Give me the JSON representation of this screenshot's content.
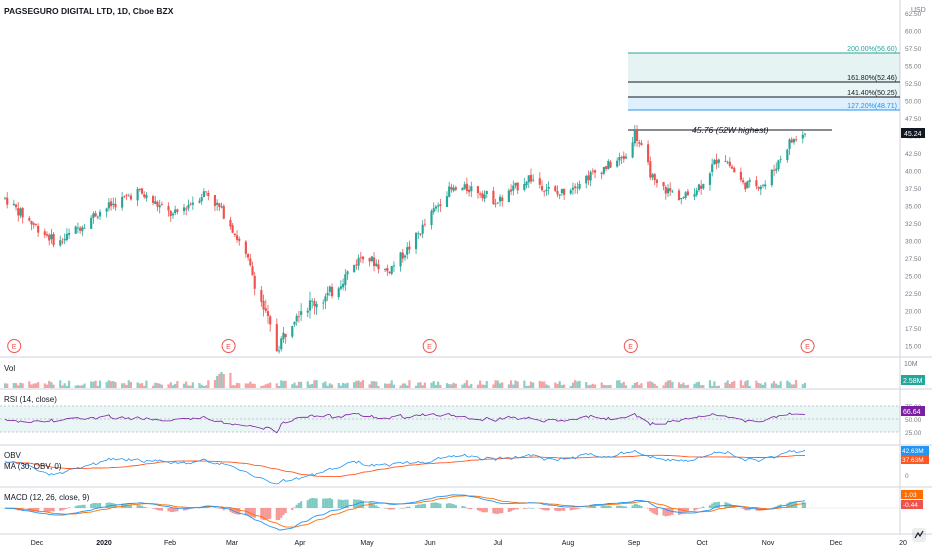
{
  "header": {
    "title": "PAGSEGURO DIGITAL LTD, 1D, Cboe BZX",
    "currency": "USD"
  },
  "colors": {
    "up": "#26a69a",
    "down": "#ef5350",
    "rsi": "#7b1fa2",
    "obv": "#2196f3",
    "ma": "#ff5722",
    "macd": "#2196f3",
    "signal": "#ff6d00",
    "fib200": "#26a69a",
    "fib127": "#2196f3"
  },
  "price_axis": {
    "ticks": [
      "62.50",
      "60.00",
      "57.50",
      "55.00",
      "52.50",
      "50.00",
      "47.50",
      "45.00",
      "42.50",
      "40.00",
      "37.50",
      "35.00",
      "32.50",
      "30.00",
      "27.50",
      "25.00",
      "22.50",
      "20.00",
      "17.50",
      "15.00"
    ],
    "current": "45.24"
  },
  "fib": {
    "l200": "200.00%(56.60)",
    "l161": "161.80%(52.46)",
    "l141": "141.40%(50.25)",
    "l127": "127.20%(48.71)"
  },
  "high_label": "45.76 (52W highest)",
  "earnings_marker": "E",
  "vol": {
    "label": "Vol",
    "axis_top": "10M",
    "current": "2.58M"
  },
  "rsi": {
    "label": "RSI (14, close)",
    "ticks": [
      "75.00",
      "50.00",
      "25.00"
    ],
    "current": "66.64"
  },
  "obv": {
    "label": "OBV",
    "ma_label": "MA (30, OBV, 0)",
    "zero": "0",
    "current_obv": "42.63M",
    "current_ma": "37.63M"
  },
  "macd": {
    "label": "MACD (12, 26, close, 9)",
    "current_macd": "1.03",
    "current_hist": "-0.44"
  },
  "time_axis": [
    "Dec",
    "2020",
    "Feb",
    "Mar",
    "Apr",
    "May",
    "Jun",
    "Jul",
    "Aug",
    "Sep",
    "Oct",
    "Nov",
    "Dec",
    "20"
  ],
  "chart_data": {
    "type": "line",
    "title": "PAGSEGURO DIGITAL LTD, 1D, Cboe BZX",
    "ylim": [
      13,
      63
    ],
    "x": [
      "2019-11-21",
      "2019-12-01",
      "2019-12-15",
      "2020-01-02",
      "2020-01-20",
      "2020-02-05",
      "2020-02-20",
      "2020-03-01",
      "2020-03-10",
      "2020-03-23",
      "2020-04-01",
      "2020-04-15",
      "2020-05-01",
      "2020-05-12",
      "2020-05-22",
      "2020-06-08",
      "2020-06-20",
      "2020-07-01",
      "2020-07-15",
      "2020-07-28",
      "2020-08-10",
      "2020-08-28",
      "2020-09-01",
      "2020-09-10",
      "2020-09-23",
      "2020-10-01",
      "2020-10-10",
      "2020-10-20",
      "2020-10-30",
      "2020-11-10",
      "2020-11-17"
    ],
    "series": [
      {
        "values": [
          36.0,
          33.0,
          29.5,
          34.0,
          37.0,
          33.5,
          37.0,
          33.0,
          27.0,
          14.5,
          20.0,
          22.0,
          28.0,
          25.5,
          29.0,
          37.0,
          37.5,
          35.5,
          39.0,
          36.5,
          39.0,
          42.0,
          45.5,
          38.0,
          36.0,
          38.0,
          42.5,
          38.0,
          38.0,
          44.0,
          45.24
        ]
      }
    ],
    "annotations": [
      "45.76 (52W highest)",
      "200.00%(56.60)",
      "161.80%(52.46)",
      "141.40%(50.25)",
      "127.20%(48.71)"
    ]
  }
}
